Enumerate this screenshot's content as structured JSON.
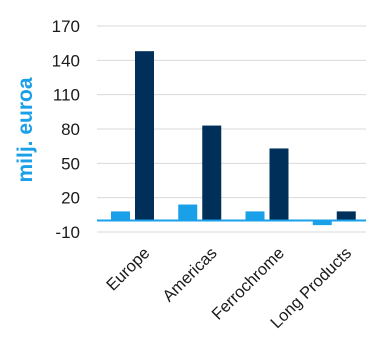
{
  "chart_data": {
    "type": "bar",
    "title": "",
    "ylabel": "milj. euroa",
    "xlabel": "",
    "categories": [
      "Europe",
      "Americas",
      "Ferrochrome",
      "Long Products"
    ],
    "series": [
      {
        "color": "#1aa0e8",
        "values": [
          8,
          14,
          8,
          -4
        ]
      },
      {
        "color": "#00305a",
        "values": [
          148,
          83,
          63,
          8
        ]
      }
    ],
    "ylim": [
      -10,
      170
    ],
    "yticks": [
      -10,
      20,
      50,
      80,
      110,
      140,
      170
    ],
    "grid": true,
    "legend": "none"
  },
  "colors": {
    "ylabel": "#1aa0e8",
    "gridline": "#d9d9d9",
    "axis": "#1aa0e8"
  }
}
